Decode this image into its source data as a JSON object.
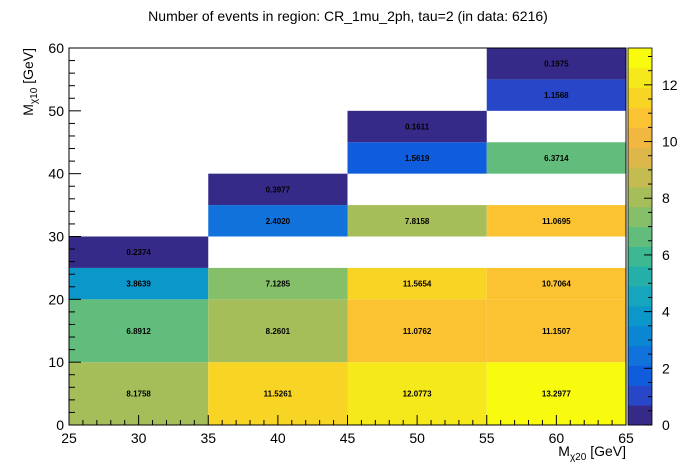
{
  "chart_data": {
    "type": "heatmap",
    "title": "Number of events in region: CR_1mu_2ph, tau=2 (in data: 6216)",
    "xlabel": {
      "main": "M",
      "sub": "χ20",
      "unit": " [GeV]"
    },
    "ylabel": {
      "main": "M",
      "sub": "χ10",
      "unit": " [GeV]"
    },
    "xlim": [
      25,
      65
    ],
    "ylim": [
      0,
      60
    ],
    "x_ticks": [
      "25",
      "30",
      "35",
      "40",
      "45",
      "50",
      "55",
      "60",
      "65"
    ],
    "y_ticks": [
      "0",
      "10",
      "20",
      "30",
      "40",
      "50",
      "60"
    ],
    "z_ticks": [
      "0",
      "2",
      "4",
      "6",
      "8",
      "10",
      "12"
    ],
    "zlim": [
      0,
      13.3
    ],
    "cells": [
      {
        "x": [
          25,
          35
        ],
        "y": [
          0,
          10
        ],
        "value": 8.1758,
        "label": "8.1758"
      },
      {
        "x": [
          25,
          35
        ],
        "y": [
          10,
          20
        ],
        "value": 6.8912,
        "label": "6.8912"
      },
      {
        "x": [
          25,
          35
        ],
        "y": [
          20,
          25
        ],
        "value": 3.8639,
        "label": "3.8639"
      },
      {
        "x": [
          25,
          35
        ],
        "y": [
          25,
          30
        ],
        "value": 0.2374,
        "label": "0.2374"
      },
      {
        "x": [
          35,
          45
        ],
        "y": [
          0,
          10
        ],
        "value": 11.5261,
        "label": "11.5261"
      },
      {
        "x": [
          35,
          45
        ],
        "y": [
          10,
          20
        ],
        "value": 8.2601,
        "label": "8.2601"
      },
      {
        "x": [
          35,
          45
        ],
        "y": [
          20,
          25
        ],
        "value": 7.1285,
        "label": "7.1285"
      },
      {
        "x": [
          35,
          45
        ],
        "y": [
          30,
          35
        ],
        "value": 2.402,
        "label": "2.4020"
      },
      {
        "x": [
          35,
          45
        ],
        "y": [
          35,
          40
        ],
        "value": 0.3977,
        "label": "0.3977"
      },
      {
        "x": [
          45,
          55
        ],
        "y": [
          0,
          10
        ],
        "value": 12.0773,
        "label": "12.0773"
      },
      {
        "x": [
          45,
          55
        ],
        "y": [
          10,
          20
        ],
        "value": 11.0762,
        "label": "11.0762"
      },
      {
        "x": [
          45,
          55
        ],
        "y": [
          20,
          25
        ],
        "value": 11.5654,
        "label": "11.5654"
      },
      {
        "x": [
          45,
          55
        ],
        "y": [
          30,
          35
        ],
        "value": 7.8158,
        "label": "7.8158"
      },
      {
        "x": [
          45,
          55
        ],
        "y": [
          40,
          45
        ],
        "value": 1.5619,
        "label": "1.5619"
      },
      {
        "x": [
          45,
          55
        ],
        "y": [
          45,
          50
        ],
        "value": 0.1611,
        "label": "0.1611"
      },
      {
        "x": [
          55,
          65
        ],
        "y": [
          0,
          10
        ],
        "value": 13.2977,
        "label": "13.2977"
      },
      {
        "x": [
          55,
          65
        ],
        "y": [
          10,
          20
        ],
        "value": 11.1507,
        "label": "11.1507"
      },
      {
        "x": [
          55,
          65
        ],
        "y": [
          20,
          25
        ],
        "value": 10.7064,
        "label": "10.7064"
      },
      {
        "x": [
          55,
          65
        ],
        "y": [
          30,
          35
        ],
        "value": 11.0695,
        "label": "11.0695"
      },
      {
        "x": [
          55,
          65
        ],
        "y": [
          40,
          45
        ],
        "value": 6.3714,
        "label": "6.3714"
      },
      {
        "x": [
          55,
          65
        ],
        "y": [
          50,
          55
        ],
        "value": 1.1568,
        "label": "1.1568"
      },
      {
        "x": [
          55,
          65
        ],
        "y": [
          55,
          60
        ],
        "value": 0.1975,
        "label": "0.1975"
      }
    ]
  }
}
